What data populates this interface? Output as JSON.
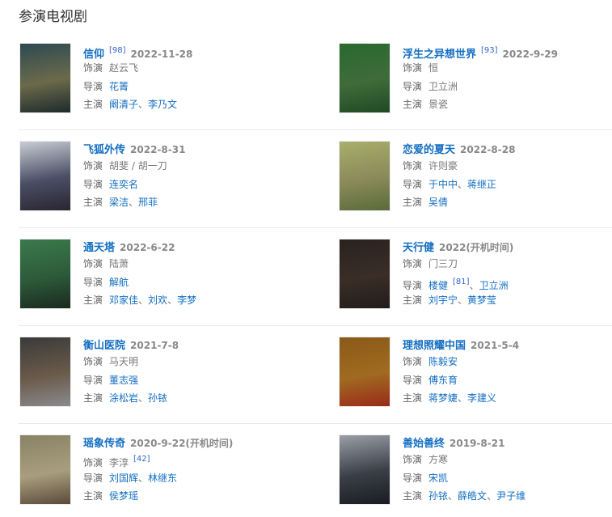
{
  "heading": "参演电视剧",
  "labels": {
    "role": "饰演",
    "director": "导演",
    "starring": "主演"
  },
  "separator": "、",
  "items": [
    {
      "title": "信仰",
      "ref": "[98]",
      "date": "2022-11-28",
      "poster_colors": [
        "#2d4a52",
        "#6b6a4a",
        "#1d2a2c"
      ],
      "role": [
        {
          "text": "赵云飞",
          "link": false
        }
      ],
      "director": [
        {
          "text": "花箐",
          "link": true
        }
      ],
      "starring": [
        {
          "text": "阚清子",
          "link": true
        },
        {
          "text": "李乃文",
          "link": true
        }
      ]
    },
    {
      "title": "浮生之异想世界",
      "ref": "[93]",
      "date": "2022-9-29",
      "poster_colors": [
        "#2a6a2e",
        "#3f6b3a",
        "#1f4a24"
      ],
      "role": [
        {
          "text": "恒",
          "link": false
        }
      ],
      "director": [
        {
          "text": "卫立洲",
          "link": false
        }
      ],
      "starring": [
        {
          "text": "景瓷",
          "link": false
        }
      ]
    },
    {
      "title": "飞狐外传",
      "ref": "",
      "date": "2022-8-31",
      "poster_colors": [
        "#c9ccd3",
        "#4a4f66",
        "#2a2530"
      ],
      "role": [
        {
          "text": "胡斐 / 胡一刀",
          "link": false
        }
      ],
      "director": [
        {
          "text": "连奕名",
          "link": true
        }
      ],
      "starring": [
        {
          "text": "梁洁",
          "link": true
        },
        {
          "text": "邢菲",
          "link": true
        }
      ]
    },
    {
      "title": "恋爱的夏天",
      "ref": "",
      "date": "2022-8-28",
      "poster_colors": [
        "#a8ae6a",
        "#8a8a5a",
        "#5a6a3a"
      ],
      "role": [
        {
          "text": "许则豪",
          "link": false
        }
      ],
      "director": [
        {
          "text": "于中中",
          "link": true
        },
        {
          "text": "蒋继正",
          "link": true
        }
      ],
      "starring": [
        {
          "text": "吴倩",
          "link": true
        }
      ]
    },
    {
      "title": "通天塔",
      "ref": "",
      "date": "2022-6-22",
      "poster_colors": [
        "#3a7a4a",
        "#2d5a3a",
        "#1a2a1e"
      ],
      "role": [
        {
          "text": "陆萧",
          "link": false
        }
      ],
      "director": [
        {
          "text": "解航",
          "link": true
        }
      ],
      "starring": [
        {
          "text": "邓家佳",
          "link": true
        },
        {
          "text": "刘欢",
          "link": true
        },
        {
          "text": "李梦",
          "link": true
        }
      ]
    },
    {
      "title": "天行健",
      "ref": "",
      "date": "2022(开机时间)",
      "poster_colors": [
        "#2a2220",
        "#3a2e26",
        "#221c1a"
      ],
      "role": [
        {
          "text": "门三刀",
          "link": false
        }
      ],
      "director": [
        {
          "text": "楼健",
          "link": true,
          "ref": "[81]"
        },
        {
          "text": "卫立洲",
          "link": true
        }
      ],
      "starring": [
        {
          "text": "刘宇宁",
          "link": true
        },
        {
          "text": "黄梦莹",
          "link": true
        }
      ]
    },
    {
      "title": "衡山医院",
      "ref": "",
      "date": "2021-7-8",
      "poster_colors": [
        "#3a3a3a",
        "#6a5a4a",
        "#8a8a8e"
      ],
      "role": [
        {
          "text": "马天明",
          "link": false
        }
      ],
      "director": [
        {
          "text": "董志强",
          "link": true
        }
      ],
      "starring": [
        {
          "text": "涂松岩",
          "link": true
        },
        {
          "text": "孙铱",
          "link": true
        }
      ]
    },
    {
      "title": "理想照耀中国",
      "ref": "",
      "date": "2021-5-4",
      "poster_colors": [
        "#8a5a1a",
        "#a06a20",
        "#9a2a1a"
      ],
      "role": [
        {
          "text": "陈毅安",
          "link": true
        }
      ],
      "director": [
        {
          "text": "傅东育",
          "link": true
        }
      ],
      "starring": [
        {
          "text": "蒋梦婕",
          "link": true
        },
        {
          "text": "李建义",
          "link": true
        }
      ]
    },
    {
      "title": "瑶象传奇",
      "ref": "",
      "date": "2020-9-22(开机时间)",
      "poster_colors": [
        "#8a8266",
        "#a89e7e",
        "#5a4a3a"
      ],
      "role": [
        {
          "text": "李淳",
          "link": false,
          "ref": "[42]"
        }
      ],
      "director": [
        {
          "text": "刘国辉",
          "link": true
        },
        {
          "text": "林继东",
          "link": true
        }
      ],
      "starring": [
        {
          "text": "侯梦瑶",
          "link": true
        }
      ]
    },
    {
      "title": "善始善终",
      "ref": "",
      "date": "2019-8-21",
      "poster_colors": [
        "#9a9ea6",
        "#3a3e46",
        "#1a1c22"
      ],
      "role": [
        {
          "text": "方寒",
          "link": false
        }
      ],
      "director": [
        {
          "text": "宋凯",
          "link": true
        }
      ],
      "starring": [
        {
          "text": "孙铱",
          "link": true
        },
        {
          "text": "薛皓文",
          "link": true
        },
        {
          "text": "尹子维",
          "link": true
        }
      ]
    }
  ]
}
